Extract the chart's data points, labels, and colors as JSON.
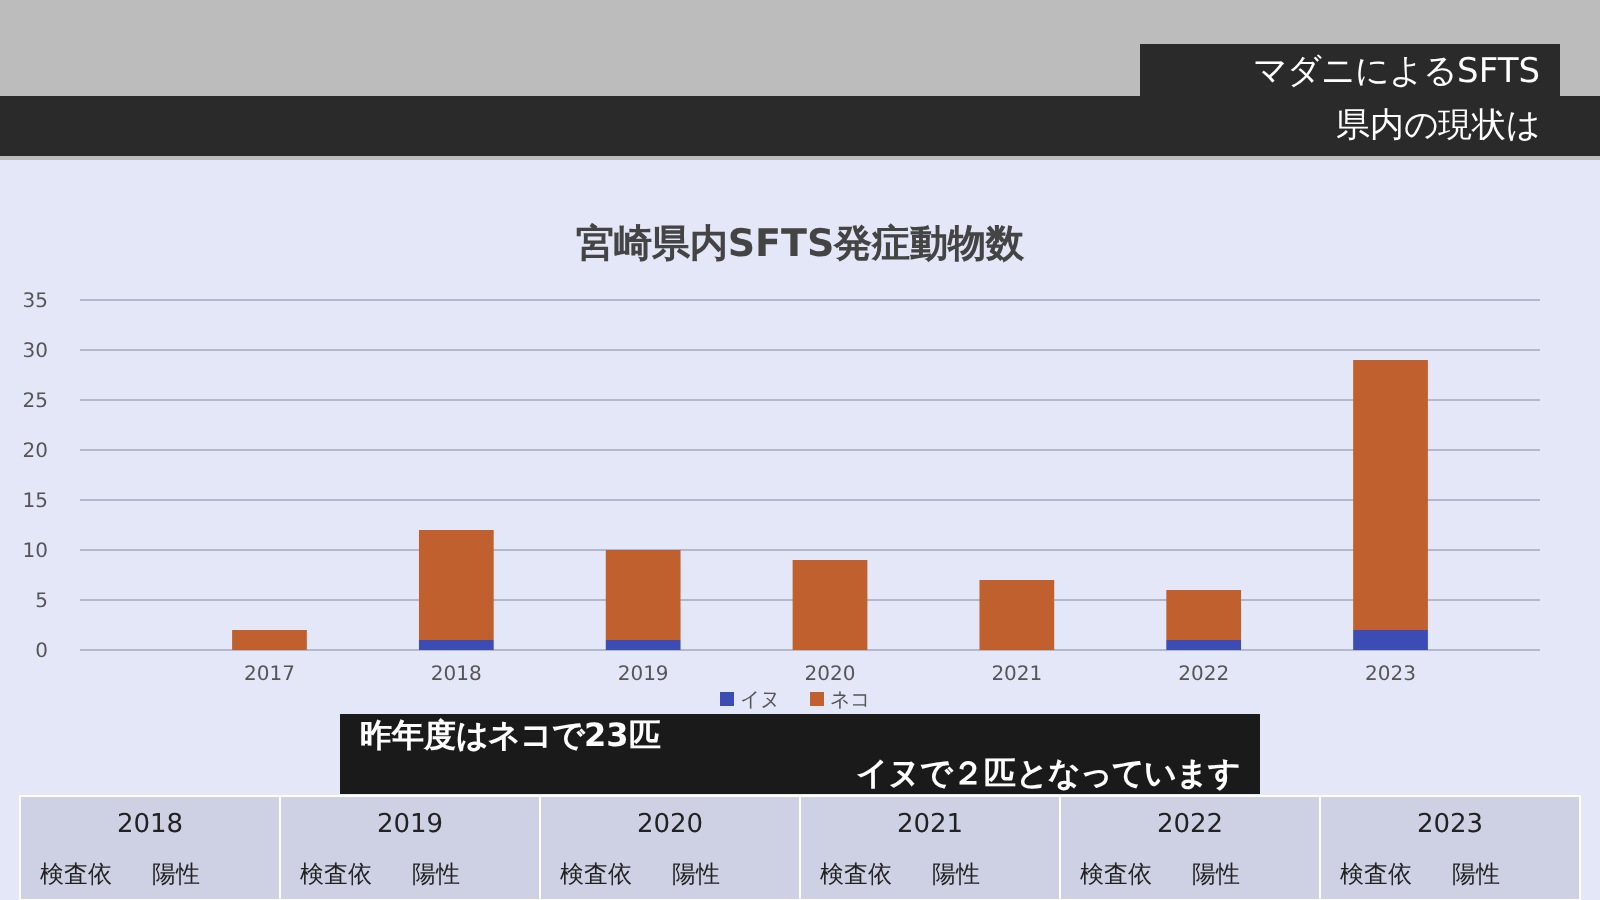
{
  "chart_data": {
    "type": "bar",
    "title": "宮崎県内SFTS発症動物数",
    "categories": [
      "2017",
      "2018",
      "2019",
      "2020",
      "2021",
      "2022",
      "2023"
    ],
    "series": [
      {
        "name": "イヌ",
        "color": "#3b4db4",
        "values": [
          0,
          1,
          1,
          0,
          0,
          1,
          2
        ]
      },
      {
        "name": "ネコ",
        "color": "#c0602e",
        "values": [
          2,
          11,
          9,
          9,
          7,
          5,
          27
        ]
      }
    ],
    "stacked": true,
    "ylim": [
      0,
      35
    ],
    "yticks": [
      0,
      5,
      10,
      15,
      20,
      25,
      30,
      35
    ],
    "grid": "y",
    "legend": "bottom",
    "annotations": [
      "マダニによるSFTS",
      "県内の現状は",
      "昨年度はネコで23匹",
      "イヌで２匹となっています",
      "2018",
      "2019",
      "2020",
      "2021",
      "2022",
      "2023",
      "検査依",
      "陽性"
    ]
  }
}
